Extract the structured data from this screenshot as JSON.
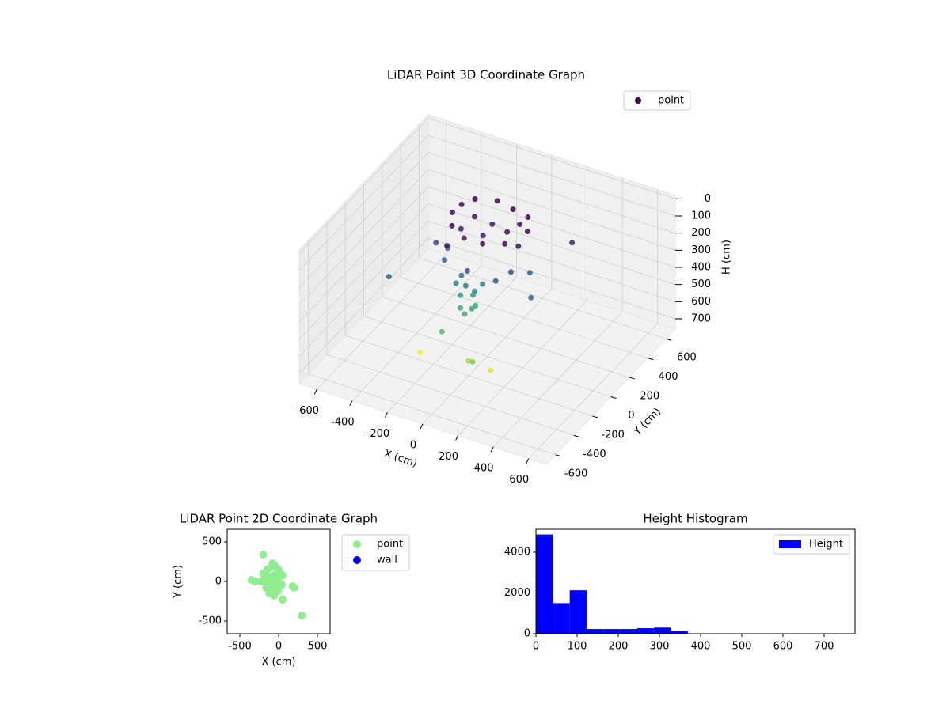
{
  "chart_data": [
    {
      "type": "scatter3d",
      "title": "LiDAR Point 3D Coordinate Graph",
      "xlabel": "X (cm)",
      "ylabel": "Y (cm)",
      "zlabel": "H (cm)",
      "xlim": [
        -700,
        700
      ],
      "ylim": [
        -700,
        700
      ],
      "zlim": [
        760,
        -20
      ],
      "xticks": [
        -600,
        -400,
        -200,
        0,
        200,
        400,
        600
      ],
      "yticks": [
        -600,
        -400,
        -200,
        0,
        200,
        400,
        600
      ],
      "zticks": [
        0,
        100,
        200,
        300,
        400,
        500,
        600,
        700
      ],
      "colormap": "viridis",
      "grid": true,
      "legend": "upper right",
      "series": [
        {
          "name": "point",
          "color": "#440154",
          "x": [
            -250,
            -200,
            -100,
            0,
            100,
            150,
            100,
            0,
            -100,
            -200,
            -150,
            -50,
            50,
            -250,
            150,
            -50,
            -180,
            80,
            -280,
            150,
            -200,
            100,
            -50,
            200,
            -250,
            -120,
            -80,
            -40,
            -100,
            -60,
            -20,
            -140,
            0,
            -90,
            -60,
            -30,
            -400,
            300,
            350,
            -150,
            -250,
            150,
            50,
            -100,
            100
          ],
          "y": [
            100,
            250,
            300,
            280,
            250,
            150,
            0,
            -50,
            -60,
            0,
            150,
            150,
            120,
            200,
            50,
            50,
            60,
            200,
            -20,
            -30,
            -80,
            -100,
            -120,
            80,
            50,
            -50,
            -80,
            -60,
            -100,
            -40,
            -90,
            -70,
            -50,
            -120,
            -130,
            -110,
            -300,
            -100,
            250,
            -150,
            -250,
            -250,
            -300,
            -300,
            -350
          ],
          "z": [
            60,
            50,
            55,
            60,
            55,
            65,
            70,
            75,
            70,
            65,
            80,
            90,
            85,
            70,
            95,
            100,
            110,
            75,
            180,
            200,
            220,
            230,
            210,
            250,
            240,
            300,
            330,
            360,
            380,
            400,
            420,
            340,
            310,
            440,
            460,
            430,
            260,
            260,
            120,
            80,
            680,
            650,
            600,
            480,
            560
          ]
        }
      ]
    },
    {
      "type": "scatter",
      "title": "LiDAR Point 2D Coordinate Graph",
      "xlabel": "X (cm)",
      "ylabel": "Y (cm)",
      "xlim": [
        -663,
        663
      ],
      "ylim": [
        -660,
        660
      ],
      "xticks": [
        -500,
        0,
        500
      ],
      "yticks": [
        -500,
        0,
        500
      ],
      "legend": "outside right",
      "series": [
        {
          "name": "point",
          "color": "#90ee90",
          "x": [
            -200,
            -150,
            -100,
            -50,
            0,
            50,
            -180,
            -120,
            -60,
            0,
            -220,
            -140,
            -80,
            -20,
            40,
            -160,
            -100,
            -40,
            20,
            -120,
            -60,
            -300,
            -350,
            180,
            200,
            50,
            -80,
            -200,
            300,
            -10
          ],
          "y": [
            100,
            150,
            180,
            200,
            150,
            80,
            40,
            60,
            80,
            50,
            0,
            -20,
            -10,
            20,
            -40,
            -80,
            -100,
            -80,
            -60,
            -150,
            -180,
            0,
            20,
            -60,
            -80,
            -230,
            230,
            340,
            -430,
            -120
          ]
        },
        {
          "name": "wall",
          "color": "#0000ff",
          "x": [],
          "y": []
        }
      ]
    },
    {
      "type": "histogram",
      "title": "Height Histogram",
      "bins": [
        0,
        41,
        82,
        123,
        164,
        205,
        246,
        287,
        328,
        369,
        410,
        451,
        492,
        533,
        574,
        615,
        656,
        697,
        738
      ],
      "xlim": [
        0,
        775
      ],
      "ylim": [
        0,
        5126
      ],
      "xticks": [
        0,
        100,
        200,
        300,
        400,
        500,
        600,
        700
      ],
      "yticks": [
        0,
        2000,
        4000
      ],
      "legend": "upper right",
      "series": [
        {
          "name": "Height",
          "color": "#0000ff",
          "values": [
            4870,
            1500,
            2130,
            230,
            230,
            230,
            270,
            300,
            120,
            20,
            10,
            5,
            5,
            5,
            5,
            5,
            3,
            2
          ]
        }
      ]
    }
  ]
}
